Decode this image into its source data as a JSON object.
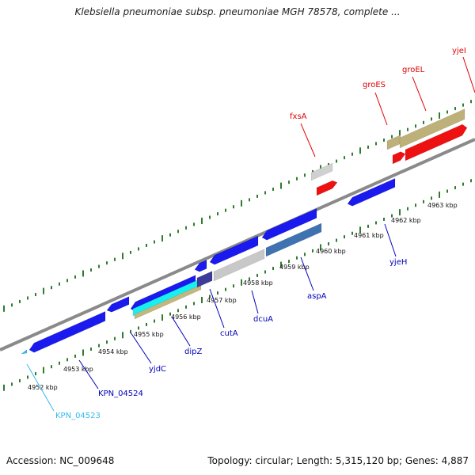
{
  "title": "Klebsiella pneumoniae subsp. pneumoniae MGH 78578, complete ...",
  "footer": {
    "accession": "Accession: NC_009648",
    "summary": "Topology: circular; Length: 5,315,120 bp; Genes: 4,887"
  },
  "colors": {
    "backbone": "#888888",
    "tick": "#2e7d2e",
    "forward_label": "#e00000",
    "reverse_label": "#0000bb",
    "highlight_label": "#33bbee"
  },
  "tick_labels": [
    "4952 kbp",
    "4953 kbp",
    "4954 kbp",
    "4955 kbp",
    "4956 kbp",
    "4957 kbp",
    "4958 kbp",
    "4959 kbp",
    "4960 kbp",
    "4961 kbp",
    "4962 kbp",
    "4963 kbp"
  ],
  "gene_labels": {
    "fxsA": "fxsA",
    "groES": "groES",
    "groEL": "groEL",
    "yjeI": "yjeI",
    "KPN_04523": "KPN_04523",
    "KPN_04524": "KPN_04524",
    "yjdC": "yjdC",
    "dipZ": "dipZ",
    "cutA": "cutA",
    "dcuA": "dcuA",
    "aspA": "aspA",
    "yjeH": "yjeH"
  }
}
